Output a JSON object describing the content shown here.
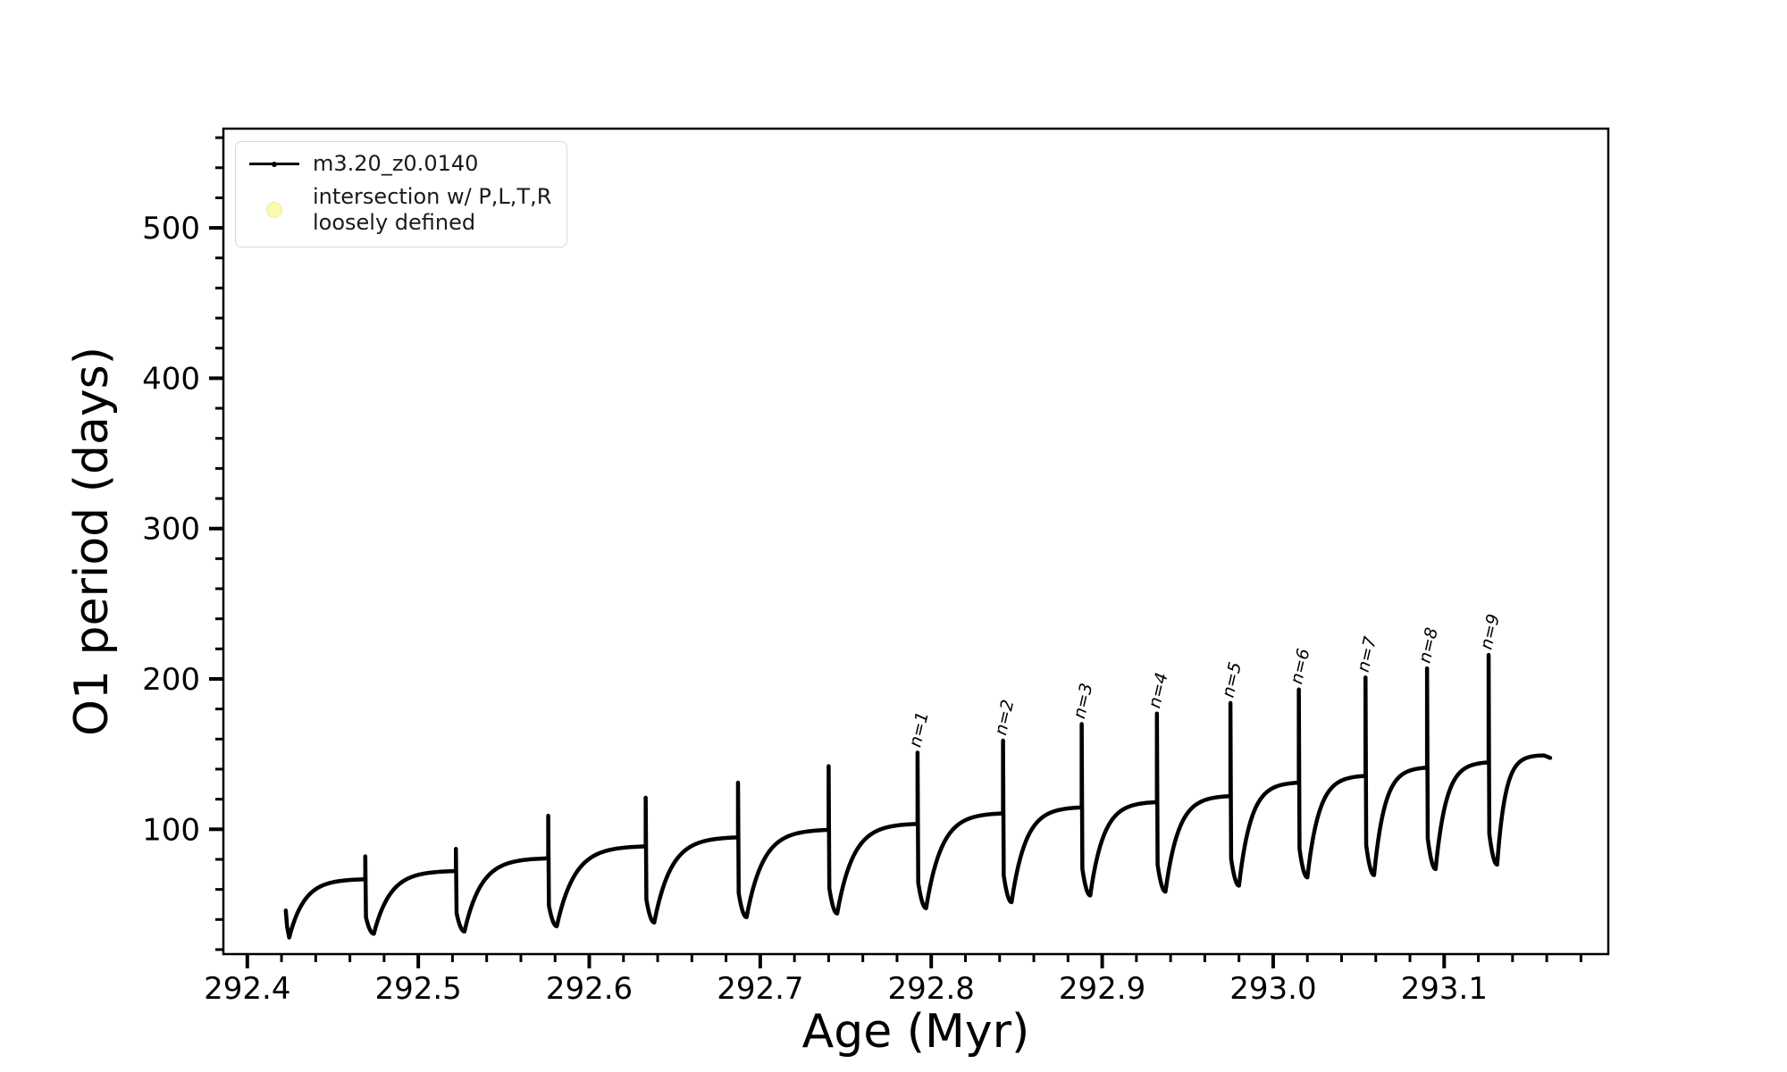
{
  "figure": {
    "background": "#ffffff",
    "line_color": "#000000",
    "marker_color": "#fbfbad"
  },
  "axes": {
    "xlabel": "Age (Myr)",
    "ylabel": "O1 period (days)"
  },
  "legend": {
    "position": "upper left",
    "entries": [
      {
        "label": "m3.20_z0.0140",
        "marker": "line-with-dot",
        "color": "#000000"
      },
      {
        "label": "intersection w/ P,L,T,R\nloosely defined",
        "marker": "circle",
        "color": "#fbfbad"
      }
    ]
  },
  "chart_data": {
    "type": "line",
    "title": "",
    "xlabel": "Age (Myr)",
    "ylabel": "O1 period (days)",
    "xlim": [
      292.386,
      293.196
    ],
    "ylim": [
      17,
      566
    ],
    "grid": false,
    "legend_position": "upper left",
    "x_major_ticks": [
      292.4,
      292.5,
      292.6,
      292.7,
      292.8,
      292.9,
      293.0,
      293.1
    ],
    "x_tick_labels": [
      "292.4",
      "292.5",
      "292.6",
      "292.7",
      "292.8",
      "292.9",
      "293.0",
      "293.1"
    ],
    "x_minor_step": 0.02,
    "y_major_ticks": [
      100,
      200,
      300,
      400,
      500
    ],
    "y_tick_labels": [
      "100",
      "200",
      "300",
      "400",
      "500"
    ],
    "y_minor_step": 20,
    "series": [
      {
        "name": "m3.20_z0.0140",
        "color": "#000000",
        "style": "dotted-marker-line",
        "start": {
          "age": 292.4225,
          "value": 46
        },
        "start_dip": {
          "age": 292.4245,
          "value": 28
        },
        "cycles": [
          {
            "spike_age": 292.469,
            "peak": 82,
            "plateau": 67,
            "min_after": 30.5,
            "label": null
          },
          {
            "spike_age": 292.522,
            "peak": 87,
            "plateau": 72.5,
            "min_after": 32,
            "label": null
          },
          {
            "spike_age": 292.576,
            "peak": 109,
            "plateau": 81,
            "min_after": 35.5,
            "label": null
          },
          {
            "spike_age": 292.633,
            "peak": 121,
            "plateau": 89,
            "min_after": 38,
            "label": null
          },
          {
            "spike_age": 292.687,
            "peak": 131,
            "plateau": 95,
            "min_after": 41.5,
            "label": null
          },
          {
            "spike_age": 292.74,
            "peak": 142,
            "plateau": 100,
            "min_after": 44,
            "label": null
          },
          {
            "spike_age": 292.792,
            "peak": 151,
            "plateau": 104,
            "min_after": 47.5,
            "label": "n=1"
          },
          {
            "spike_age": 292.842,
            "peak": 159,
            "plateau": 111,
            "min_after": 51.5,
            "label": "n=2"
          },
          {
            "spike_age": 292.888,
            "peak": 170,
            "plateau": 115,
            "min_after": 56,
            "label": "n=3"
          },
          {
            "spike_age": 292.932,
            "peak": 177,
            "plateau": 118.5,
            "min_after": 58.5,
            "label": "n=4"
          },
          {
            "spike_age": 292.975,
            "peak": 184,
            "plateau": 122.5,
            "min_after": 62.5,
            "label": "n=5"
          },
          {
            "spike_age": 293.015,
            "peak": 193,
            "plateau": 131.5,
            "min_after": 68,
            "label": "n=6"
          },
          {
            "spike_age": 293.054,
            "peak": 201,
            "plateau": 136,
            "min_after": 69.5,
            "label": "n=7"
          },
          {
            "spike_age": 293.09,
            "peak": 207,
            "plateau": 141.5,
            "min_after": 73.5,
            "label": "n=8"
          },
          {
            "spike_age": 293.126,
            "peak": 216,
            "plateau": 145,
            "min_after": 76.5,
            "label": "n=9"
          }
        ],
        "end": {
          "plateau_age": 293.155,
          "plateau_value": 149.5,
          "age": 293.162,
          "value": 147.5
        }
      }
    ]
  }
}
